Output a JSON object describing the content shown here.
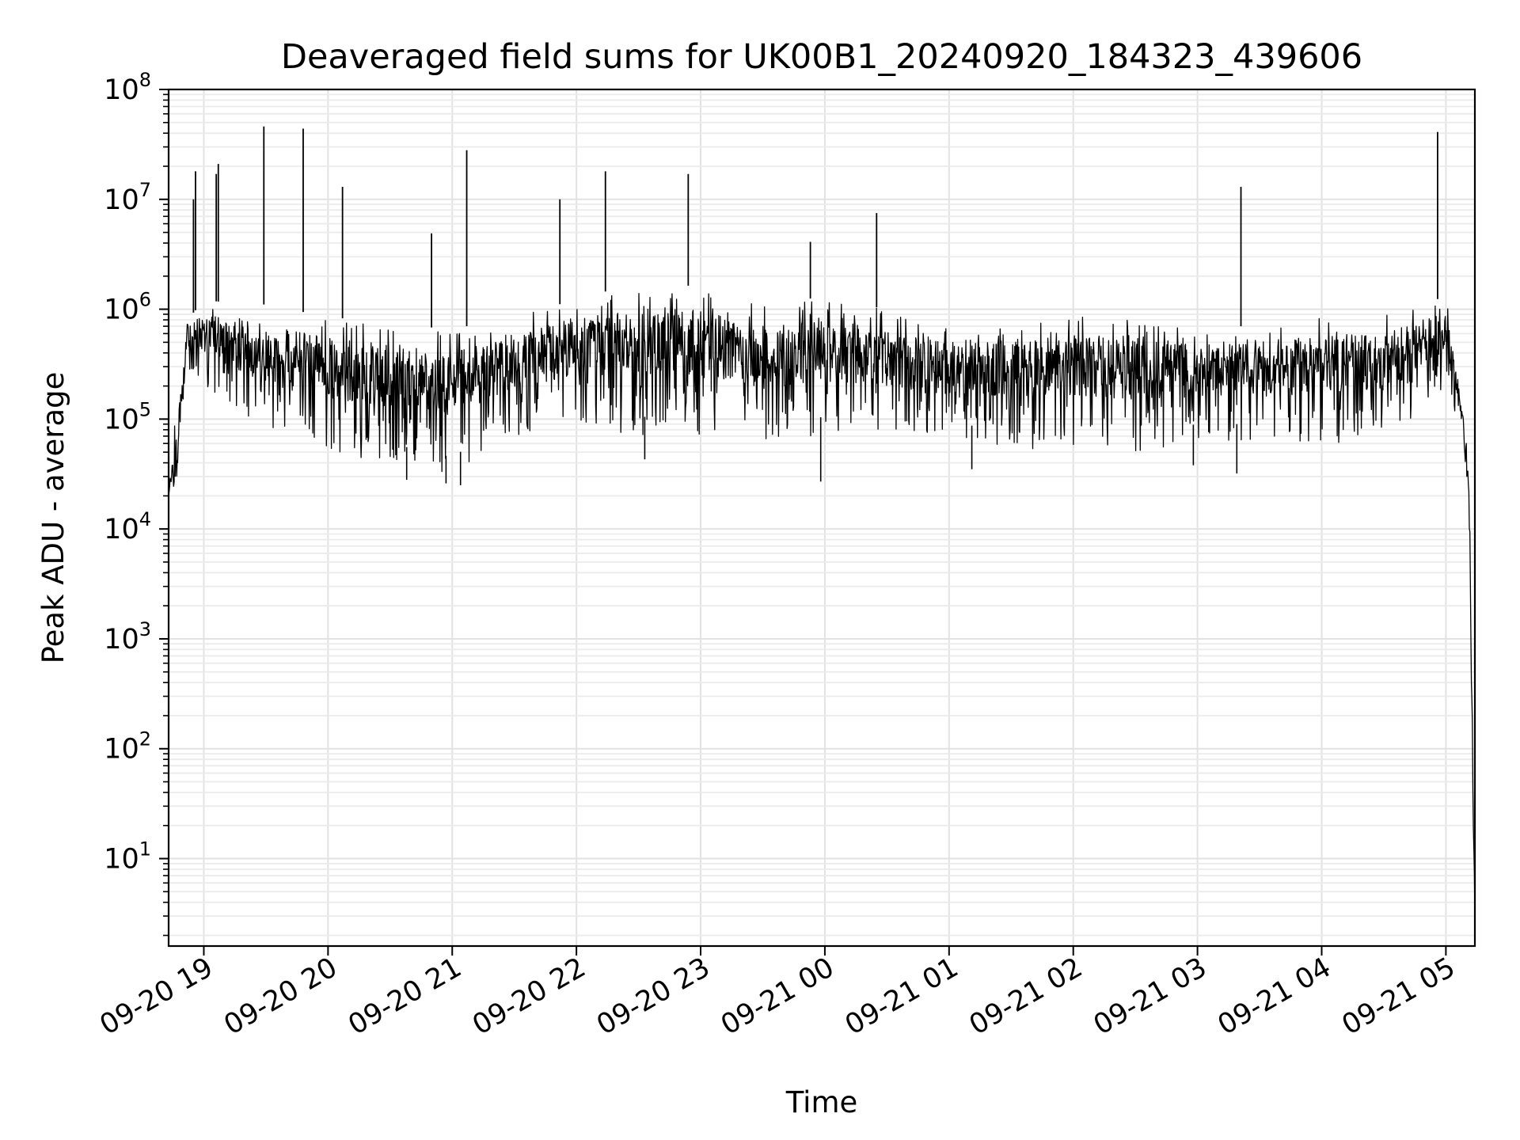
{
  "chart_data": {
    "type": "line",
    "title": "Deaveraged field sums for UK00B1_20240920_184323_439606",
    "xlabel": "Time",
    "ylabel": "Peak ADU - average",
    "x_range": [
      "2024-09-20 18:43",
      "2024-09-21 05:14"
    ],
    "y_scale": "log",
    "ylim": [
      1.6,
      100000000
    ],
    "grid": true,
    "x_ticks": [
      {
        "t": "2024-09-20 19:00",
        "label": "09-20 19"
      },
      {
        "t": "2024-09-20 20:00",
        "label": "09-20 20"
      },
      {
        "t": "2024-09-20 21:00",
        "label": "09-20 21"
      },
      {
        "t": "2024-09-20 22:00",
        "label": "09-20 22"
      },
      {
        "t": "2024-09-20 23:00",
        "label": "09-20 23"
      },
      {
        "t": "2024-09-21 00:00",
        "label": "09-21 00"
      },
      {
        "t": "2024-09-21 01:00",
        "label": "09-21 01"
      },
      {
        "t": "2024-09-21 02:00",
        "label": "09-21 02"
      },
      {
        "t": "2024-09-21 03:00",
        "label": "09-21 03"
      },
      {
        "t": "2024-09-21 04:00",
        "label": "09-21 04"
      },
      {
        "t": "2024-09-21 05:00",
        "label": "09-21 05"
      }
    ],
    "y_ticks": [
      {
        "v": 10,
        "base": "10",
        "exp": "1"
      },
      {
        "v": 100,
        "base": "10",
        "exp": "2"
      },
      {
        "v": 1000,
        "base": "10",
        "exp": "3"
      },
      {
        "v": 10000,
        "base": "10",
        "exp": "4"
      },
      {
        "v": 100000,
        "base": "10",
        "exp": "5"
      },
      {
        "v": 1000000,
        "base": "10",
        "exp": "6"
      },
      {
        "v": 10000000,
        "base": "10",
        "exp": "7"
      },
      {
        "v": 100000000,
        "base": "10",
        "exp": "8"
      }
    ],
    "series": [
      {
        "color": "#000000",
        "envelope": [
          {
            "t": "2024-09-20 18:43",
            "hi": 40000,
            "lo": 12000
          },
          {
            "t": "2024-09-20 18:47",
            "hi": 120000,
            "lo": 10000
          },
          {
            "t": "2024-09-20 18:52",
            "hi": 800000,
            "lo": 300000
          },
          {
            "t": "2024-09-20 19:00",
            "hi": 1200000,
            "lo": 200000
          },
          {
            "t": "2024-09-20 19:30",
            "hi": 1100000,
            "lo": 70000
          },
          {
            "t": "2024-09-20 20:00",
            "hi": 850000,
            "lo": 50000
          },
          {
            "t": "2024-09-20 20:30",
            "hi": 750000,
            "lo": 40000
          },
          {
            "t": "2024-09-20 21:00",
            "hi": 650000,
            "lo": 30000
          },
          {
            "t": "2024-09-20 21:30",
            "hi": 900000,
            "lo": 70000
          },
          {
            "t": "2024-09-20 22:00",
            "hi": 1200000,
            "lo": 90000
          },
          {
            "t": "2024-09-20 22:30",
            "hi": 1800000,
            "lo": 70000
          },
          {
            "t": "2024-09-20 23:00",
            "hi": 1600000,
            "lo": 70000
          },
          {
            "t": "2024-09-20 23:30",
            "hi": 1100000,
            "lo": 60000
          },
          {
            "t": "2024-09-21 00:00",
            "hi": 1300000,
            "lo": 70000
          },
          {
            "t": "2024-09-21 00:30",
            "hi": 1000000,
            "lo": 70000
          },
          {
            "t": "2024-09-21 01:00",
            "hi": 700000,
            "lo": 60000
          },
          {
            "t": "2024-09-21 01:30",
            "hi": 800000,
            "lo": 55000
          },
          {
            "t": "2024-09-21 02:00",
            "hi": 900000,
            "lo": 50000
          },
          {
            "t": "2024-09-21 02:30",
            "hi": 800000,
            "lo": 50000
          },
          {
            "t": "2024-09-21 03:00",
            "hi": 700000,
            "lo": 60000
          },
          {
            "t": "2024-09-21 03:30",
            "hi": 700000,
            "lo": 60000
          },
          {
            "t": "2024-09-21 04:00",
            "hi": 900000,
            "lo": 60000
          },
          {
            "t": "2024-09-21 04:30",
            "hi": 900000,
            "lo": 60000
          },
          {
            "t": "2024-09-21 05:00",
            "hi": 1300000,
            "lo": 200000
          },
          {
            "t": "2024-09-21 05:08",
            "hi": 150000,
            "lo": 60000
          },
          {
            "t": "2024-09-21 05:11",
            "hi": 40000,
            "lo": 10000
          },
          {
            "t": "2024-09-21 05:12",
            "hi": 5000,
            "lo": 1000
          },
          {
            "t": "2024-09-21 05:13",
            "hi": 100,
            "lo": 20
          },
          {
            "t": "2024-09-21 05:14",
            "hi": 4,
            "lo": 1.8
          }
        ],
        "spikes": [
          {
            "t": "2024-09-20 18:55",
            "v": 10000000
          },
          {
            "t": "2024-09-20 18:56",
            "v": 18000000
          },
          {
            "t": "2024-09-20 19:06",
            "v": 17000000
          },
          {
            "t": "2024-09-20 19:07",
            "v": 21000000
          },
          {
            "t": "2024-09-20 19:29",
            "v": 46000000
          },
          {
            "t": "2024-09-20 19:48",
            "v": 44000000
          },
          {
            "t": "2024-09-20 20:07",
            "v": 13000000
          },
          {
            "t": "2024-09-20 20:50",
            "v": 4900000
          },
          {
            "t": "2024-09-20 21:07",
            "v": 28000000
          },
          {
            "t": "2024-09-20 21:52",
            "v": 10000000
          },
          {
            "t": "2024-09-20 22:14",
            "v": 18000000
          },
          {
            "t": "2024-09-20 22:54",
            "v": 17000000
          },
          {
            "t": "2024-09-20 23:53",
            "v": 4100000
          },
          {
            "t": "2024-09-21 00:25",
            "v": 7500000
          },
          {
            "t": "2024-09-21 03:21",
            "v": 13000000
          },
          {
            "t": "2024-09-21 04:56",
            "v": 41000000
          }
        ],
        "dips": [
          {
            "t": "2024-09-20 20:38",
            "v": 28000
          },
          {
            "t": "2024-09-20 20:57",
            "v": 26000
          },
          {
            "t": "2024-09-20 21:04",
            "v": 25000
          },
          {
            "t": "2024-09-20 22:33",
            "v": 43000
          },
          {
            "t": "2024-09-20 23:58",
            "v": 27000
          },
          {
            "t": "2024-09-21 01:11",
            "v": 35000
          },
          {
            "t": "2024-09-21 02:58",
            "v": 38000
          },
          {
            "t": "2024-09-21 03:19",
            "v": 32000
          }
        ]
      }
    ]
  }
}
